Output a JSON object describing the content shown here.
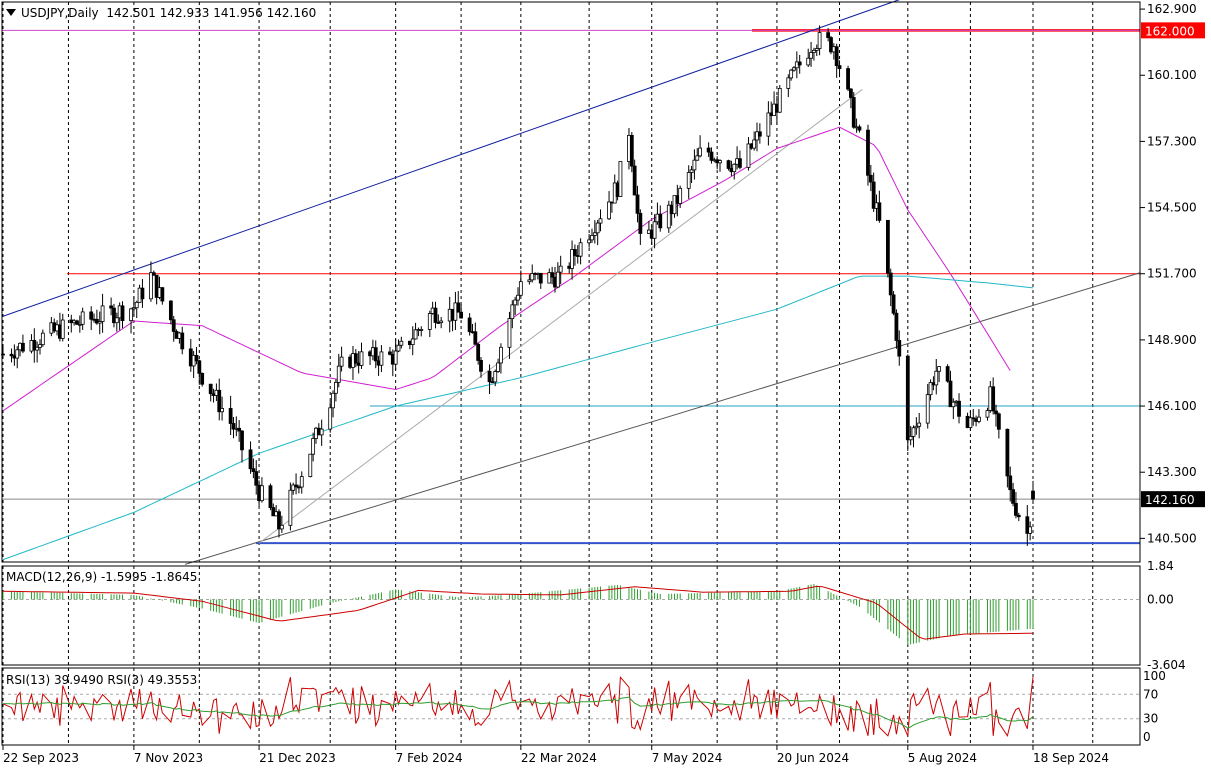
{
  "header": {
    "symbol_label": "USDJPY,Daily",
    "ohlc": "142.501 142.933 141.956 142.160",
    "menu_icon": "triangle-down-icon"
  },
  "macd": {
    "label": "MACD(12,26,9) -1.5995 -1.8645",
    "axis": [
      "1.84",
      "0.00",
      "-3.604"
    ],
    "histogram_color": "#2e9e2e",
    "signal_color": "#cc0000"
  },
  "rsi": {
    "label": "RSI(13) 39.9490  RSI(3) 49.3553",
    "axis": [
      "100",
      "70",
      "30",
      "0"
    ],
    "rsi13_color": "#2e9e2e",
    "rsi3_color": "#cc0000"
  },
  "price_axis": [
    "162.900",
    "160.100",
    "157.300",
    "154.500",
    "151.700",
    "148.900",
    "146.100",
    "143.300",
    "140.500"
  ],
  "current_price_label": "142.160",
  "level_label": "162.000",
  "date_axis": [
    "22 Sep 2023",
    "7 Nov 2023",
    "21 Dec 2023",
    "7 Feb 2024",
    "22 Mar 2024",
    "7 May 2024",
    "20 Jun 2024",
    "5 Aug 2024",
    "18 Sep 2024"
  ],
  "chart_data": {
    "type": "candlestick",
    "symbol": "USDJPY",
    "timeframe": "Daily",
    "ylim": [
      139.5,
      163.2
    ],
    "grid": true,
    "series": [
      {
        "name": "price_path",
        "x": [
          "2023-09-22",
          "2023-10-15",
          "2023-11-07",
          "2023-11-13",
          "2023-11-21",
          "2023-12-01",
          "2023-12-12",
          "2023-12-21",
          "2023-12-28",
          "2024-01-10",
          "2024-01-20",
          "2024-02-07",
          "2024-02-20",
          "2024-03-01",
          "2024-03-11",
          "2024-03-22",
          "2024-04-05",
          "2024-04-25",
          "2024-04-29",
          "2024-05-03",
          "2024-05-15",
          "2024-05-25",
          "2024-06-07",
          "2024-06-20",
          "2024-07-03",
          "2024-07-10",
          "2024-07-19",
          "2024-07-26",
          "2024-08-01",
          "2024-08-05",
          "2024-08-15",
          "2024-08-26",
          "2024-09-03",
          "2024-09-10",
          "2024-09-16",
          "2024-09-18"
        ],
        "values": [
          148.3,
          149.5,
          150.3,
          151.6,
          149.5,
          147.4,
          145.2,
          142.5,
          141.0,
          144.8,
          148.1,
          148.2,
          150.1,
          150.0,
          147.1,
          151.4,
          151.6,
          155.4,
          157.8,
          153.0,
          154.6,
          157.0,
          156.2,
          158.9,
          161.6,
          161.4,
          157.4,
          153.8,
          149.2,
          144.5,
          147.6,
          145.2,
          146.5,
          142.4,
          140.7,
          142.16
        ]
      }
    ],
    "moving_averages": [
      {
        "name": "ma_fast",
        "color": "#d020d0",
        "x": [
          "2023-09-22",
          "2023-11-07",
          "2023-12-01",
          "2024-01-05",
          "2024-02-07",
          "2024-02-20",
          "2024-03-15",
          "2024-04-10",
          "2024-05-07",
          "2024-06-01",
          "2024-06-20",
          "2024-07-12",
          "2024-07-25",
          "2024-08-05",
          "2024-08-20",
          "2024-09-10"
        ],
        "values": [
          145.9,
          149.7,
          149.5,
          147.5,
          146.8,
          147.3,
          149.5,
          151.6,
          154.0,
          155.6,
          157.0,
          157.9,
          157.1,
          154.4,
          151.7,
          147.6
        ]
      },
      {
        "name": "ma_slow",
        "color": "#20b8c8",
        "x": [
          "2023-09-22",
          "2023-11-07",
          "2023-12-21",
          "2024-02-07",
          "2024-03-22",
          "2024-05-07",
          "2024-06-20",
          "2024-07-19",
          "2024-08-05",
          "2024-09-03",
          "2024-09-18"
        ],
        "values": [
          139.6,
          141.6,
          144.1,
          146.1,
          147.3,
          148.8,
          150.2,
          151.6,
          151.6,
          151.3,
          151.1
        ]
      }
    ],
    "levels": [
      {
        "name": "resistance_red",
        "value": 162.0,
        "color": "#ff0000"
      },
      {
        "name": "horizontal_magenta",
        "value": 162.0,
        "color": "#cc44cc"
      },
      {
        "name": "horizontal_red_thin",
        "value": 151.7,
        "color": "#ff0000"
      },
      {
        "name": "horizontal_teal",
        "value": 146.1,
        "color": "#20a0c0"
      },
      {
        "name": "horizontal_blue_support",
        "value": 140.3,
        "color": "#3355cc"
      },
      {
        "name": "last_price",
        "value": 142.16,
        "color": "#888888"
      }
    ],
    "trendlines": [
      {
        "name": "upper_channel_blue",
        "color": "#1020a0",
        "x": [
          "2023-09-22",
          "2024-07-26"
        ],
        "values": [
          149.9,
          163.0
        ]
      },
      {
        "name": "lower_trend_gray",
        "color": "#555555",
        "x": [
          "2023-11-25",
          "2024-09-30"
        ],
        "values": [
          139.4,
          150.8
        ]
      },
      {
        "name": "diagonal_light_gray",
        "color": "#aaaaaa",
        "x": [
          "2023-12-21",
          "2024-07-20"
        ],
        "values": [
          140.3,
          159.5
        ]
      }
    ],
    "macd": {
      "fast": 12,
      "slow": 26,
      "signal": 9,
      "macd_value": -1.5995,
      "signal_value": -1.8645,
      "ylim": [
        -3.604,
        1.84
      ]
    },
    "rsi": {
      "periods": [
        13,
        3
      ],
      "rsi13": 39.949,
      "rsi3": 49.3553,
      "levels": [
        30,
        70
      ],
      "ylim": [
        0,
        100
      ]
    }
  }
}
